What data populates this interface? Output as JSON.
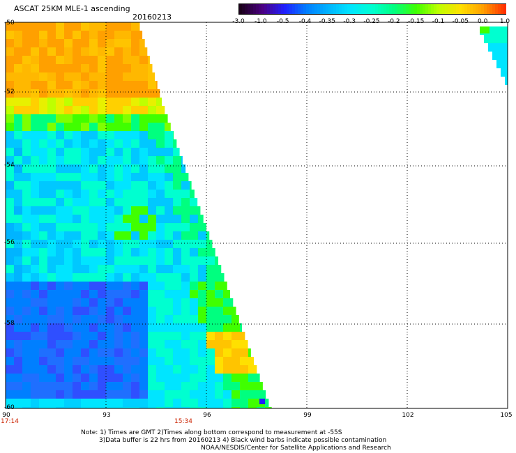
{
  "header": {
    "title": "ASCAT 25KM MLE-1 ascending",
    "date": "20160213"
  },
  "colorbar": {
    "labels": [
      "-3.0",
      "-1.0",
      "-0.5",
      "-0.4",
      "-0.35",
      "-0.3",
      "-0.25",
      "-0.2",
      "-0.15",
      "-0.1",
      "-0.05",
      "0.0",
      "1.0"
    ],
    "colors": [
      "#1a001a",
      "#4b0082",
      "#1f1fff",
      "#007fff",
      "#00b4ff",
      "#00e5ff",
      "#00ffd0",
      "#00ff7f",
      "#40ff00",
      "#bfff00",
      "#ffe000",
      "#ffa000",
      "#ff3000"
    ]
  },
  "map": {
    "lat_labels": [
      "-50",
      "-52",
      "-54",
      "-56",
      "-58",
      "-60"
    ],
    "lon_labels": [
      "90",
      "93",
      "96",
      "99",
      "102",
      "105"
    ],
    "lat_range": [
      -60,
      -50
    ],
    "lon_range": [
      90,
      105
    ],
    "time_labels": [
      "17:14",
      "15:34"
    ]
  },
  "notes": [
    "Note: 1) Times are GMT 2)Times along bottom correspond to measurement at -55S",
    "3)Data buffer is 22 hrs from 20160213 4) Black wind barbs indicate possible contamination",
    "NOAA/NESDIS/Center for Satellite Applications and Research"
  ]
}
